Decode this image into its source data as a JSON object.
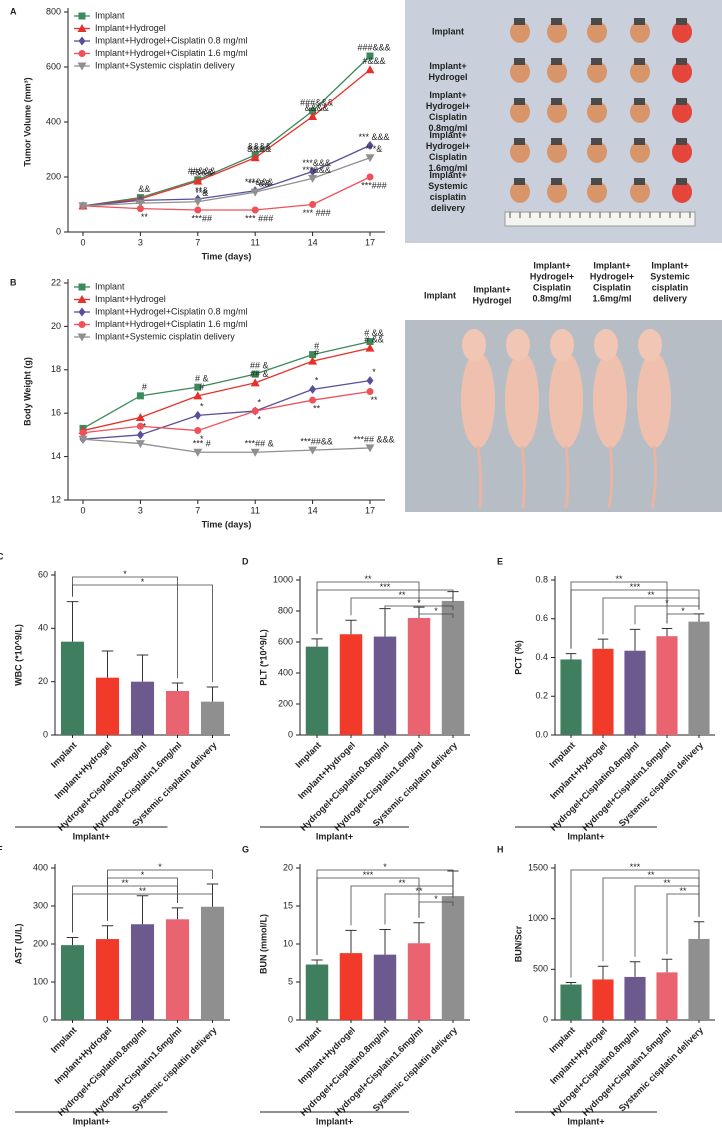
{
  "chart_data": [
    {
      "type": "line",
      "panel": "A",
      "ylabel": "Tumor Volume (mm³)",
      "xlabel": "Time (days)",
      "categories": [
        "0",
        "3",
        "7",
        "11",
        "14",
        "17"
      ],
      "ylim": [
        0,
        800
      ],
      "yticks": [
        0,
        200,
        400,
        600,
        800
      ],
      "series": [
        {
          "name": "Implant",
          "color": "#3a8a5a",
          "values": [
            95,
            125,
            190,
            280,
            440,
            640
          ],
          "annotations": [
            null,
            "&&",
            "##&&&",
            "&&&&",
            "###&&&",
            "###&&&"
          ]
        },
        {
          "name": "Implant+Hydrogel",
          "color": "#e8302a",
          "values": [
            95,
            120,
            185,
            270,
            420,
            590
          ],
          "annotations": [
            null,
            null,
            "#&&&",
            "&&&&",
            "&&&&",
            "#&&&"
          ]
        },
        {
          "name": "Implant+Hydrogel+Cisplatin 0.8 mg/ml",
          "color": "#5a4f9a",
          "values": [
            95,
            115,
            120,
            150,
            220,
            315
          ],
          "annotations": [
            null,
            null,
            "**&",
            "***&&&",
            "***&&&",
            "*** &&&"
          ]
        },
        {
          "name": "Implant+Hydrogel+Cisplatin 1.6 mg/ml",
          "color": "#f0505a",
          "values": [
            95,
            85,
            80,
            80,
            100,
            200
          ],
          "annotations": [
            null,
            "**",
            "***##",
            "*** ###",
            "*** ###",
            "***###"
          ]
        },
        {
          "name": "Implant+Systemic cisplatin delivery",
          "color": "#909090",
          "values": [
            95,
            105,
            110,
            145,
            195,
            270
          ],
          "annotations": [
            null,
            null,
            "**&",
            "***&&",
            "***&&&",
            "***&"
          ]
        }
      ]
    },
    {
      "type": "line",
      "panel": "B",
      "ylabel": "Body Weight (g)",
      "xlabel": "Time (days)",
      "categories": [
        "0",
        "3",
        "7",
        "11",
        "14",
        "17"
      ],
      "ylim": [
        12,
        22
      ],
      "yticks": [
        12,
        14,
        16,
        18,
        20,
        22
      ],
      "series": [
        {
          "name": "Implant",
          "color": "#3a8a5a",
          "values": [
            15.3,
            16.8,
            17.2,
            17.8,
            18.7,
            19.3
          ],
          "annotations": [
            null,
            "#",
            "# &",
            "## &",
            "#",
            "# &&"
          ]
        },
        {
          "name": "Implant+Hydrogel",
          "color": "#e8302a",
          "values": [
            15.2,
            15.8,
            16.8,
            17.4,
            18.4,
            19.0
          ],
          "annotations": [
            null,
            null,
            "#",
            "## &",
            "#",
            "# &&"
          ]
        },
        {
          "name": "Implant+Hydrogel+Cisplatin 0.8 mg/ml",
          "color": "#5a4f9a",
          "values": [
            14.8,
            15.0,
            15.9,
            16.1,
            17.1,
            17.5
          ],
          "annotations": [
            null,
            "*",
            "*",
            "*",
            "*",
            "*"
          ]
        },
        {
          "name": "Implant+Hydrogel+Cisplatin 1.6 mg/ml",
          "color": "#f0505a",
          "values": [
            15.1,
            15.4,
            15.2,
            16.1,
            16.6,
            17.0
          ],
          "annotations": [
            null,
            null,
            "*",
            "*",
            "**",
            "**"
          ]
        },
        {
          "name": "Implant+Systemic cisplatin delivery",
          "color": "#909090",
          "values": [
            14.8,
            14.6,
            14.2,
            14.2,
            14.3,
            14.4
          ],
          "annotations": [
            null,
            null,
            "*** #",
            "***## &",
            "***##&&",
            "***## &&&"
          ]
        }
      ]
    },
    {
      "type": "bar",
      "panel": "C",
      "ylabel": "WBC (*10^9/L)",
      "group_label": "Implant+",
      "categories": [
        "Implant",
        "Implant+Hydrogel",
        "Hydrogel+Cisplatin0.8mg/ml",
        "Hydrogel+Cisplatin1.6mg/ml",
        "Systemic cisplatin delivery"
      ],
      "colors": [
        "#3f7f5f",
        "#f23a2a",
        "#6c5a8e",
        "#e96470",
        "#8f8f8f"
      ],
      "values": [
        35,
        21.5,
        20,
        16.5,
        12.5
      ],
      "errors": [
        15,
        10,
        10,
        3,
        5.5
      ],
      "ylim": [
        0,
        60
      ],
      "yticks": [
        0,
        20,
        40,
        60
      ],
      "brackets": [
        {
          "from": 0,
          "to": 3,
          "label": "*"
        },
        {
          "from": 0,
          "to": 4,
          "label": "*"
        }
      ]
    },
    {
      "type": "bar",
      "panel": "D",
      "ylabel": "PLT (*10^9/L)",
      "group_label": "Implant+",
      "categories": [
        "Implant",
        "Implant+Hydrogel",
        "Hydrogel+Cisplatin0.8mg/ml",
        "Hydrogel+Cisplatin1.6mg/ml",
        "Systemic cisplatin delivery"
      ],
      "colors": [
        "#3f7f5f",
        "#f23a2a",
        "#6c5a8e",
        "#e96470",
        "#8f8f8f"
      ],
      "values": [
        570,
        650,
        635,
        755,
        865
      ],
      "errors": [
        50,
        90,
        180,
        70,
        60
      ],
      "ylim": [
        0,
        1000
      ],
      "yticks": [
        0,
        200,
        400,
        600,
        800,
        1000
      ],
      "brackets": [
        {
          "from": 0,
          "to": 3,
          "label": "**"
        },
        {
          "from": 0,
          "to": 4,
          "label": "***"
        },
        {
          "from": 1,
          "to": 4,
          "label": "**"
        },
        {
          "from": 2,
          "to": 4,
          "label": "*"
        },
        {
          "from": 3,
          "to": 4,
          "label": "*"
        }
      ]
    },
    {
      "type": "bar",
      "panel": "E",
      "ylabel": "PCT (%)",
      "group_label": "Implant+",
      "categories": [
        "Implant",
        "Implant+Hydrogel",
        "Hydrogel+Cisplatin0.8mg/ml",
        "Hydrogel+Cisplatin1.6mg/ml",
        "Systemic cisplatin delivery"
      ],
      "colors": [
        "#3f7f5f",
        "#f23a2a",
        "#6c5a8e",
        "#e96470",
        "#8f8f8f"
      ],
      "values": [
        0.39,
        0.445,
        0.435,
        0.51,
        0.585
      ],
      "errors": [
        0.03,
        0.05,
        0.11,
        0.04,
        0.04
      ],
      "ylim": [
        0,
        0.8
      ],
      "yticks": [
        {
          "value": 0,
          "label": "0.0"
        },
        0.2,
        0.4,
        0.6,
        0.8
      ],
      "brackets": [
        {
          "from": 0,
          "to": 3,
          "label": "**"
        },
        {
          "from": 0,
          "to": 4,
          "label": "***"
        },
        {
          "from": 1,
          "to": 4,
          "label": "**"
        },
        {
          "from": 2,
          "to": 4,
          "label": "*"
        },
        {
          "from": 3,
          "to": 4,
          "label": "*"
        }
      ]
    },
    {
      "type": "bar",
      "panel": "F",
      "ylabel": "AST (U/L)",
      "group_label": "Implant+",
      "categories": [
        "Implant",
        "Implant+Hydrogel",
        "Hydrogel+Cisplatin0.8mg/ml",
        "Hydrogel+Cisplatin1.6mg/ml",
        "Systemic cisplatin delivery"
      ],
      "colors": [
        "#3f7f5f",
        "#f23a2a",
        "#6c5a8e",
        "#e96470",
        "#8f8f8f"
      ],
      "values": [
        197,
        213,
        252,
        265,
        298
      ],
      "errors": [
        20,
        35,
        75,
        30,
        60
      ],
      "ylim": [
        0,
        400
      ],
      "yticks": [
        0,
        100,
        200,
        300,
        400
      ],
      "brackets": [
        {
          "from": 1,
          "to": 4,
          "label": "*"
        },
        {
          "from": 1,
          "to": 3,
          "label": "*"
        },
        {
          "from": 0,
          "to": 3,
          "label": "**"
        },
        {
          "from": 0,
          "to": 4,
          "label": "**"
        }
      ]
    },
    {
      "type": "bar",
      "panel": "G",
      "ylabel": "BUN (mmol/L)",
      "group_label": "Implant+",
      "categories": [
        "Implant",
        "Implant+Hydrogel",
        "Hydrogel+Cisplatin0.8mg/ml",
        "Hydrogel+Cisplatin1.6mg/ml",
        "Systemic cisplatin delivery"
      ],
      "colors": [
        "#3f7f5f",
        "#f23a2a",
        "#6c5a8e",
        "#e96470",
        "#8f8f8f"
      ],
      "values": [
        7.3,
        8.8,
        8.6,
        10.1,
        16.3
      ],
      "errors": [
        0.6,
        3,
        3.3,
        2.7,
        3.3
      ],
      "ylim": [
        0,
        20
      ],
      "yticks": [
        0,
        5,
        10,
        15,
        20
      ],
      "brackets": [
        {
          "from": 0,
          "to": 4,
          "label": "*"
        },
        {
          "from": 0,
          "to": 3,
          "label": "***"
        },
        {
          "from": 1,
          "to": 4,
          "label": "**"
        },
        {
          "from": 2,
          "to": 4,
          "label": "**"
        },
        {
          "from": 3,
          "to": 4,
          "label": "*"
        }
      ]
    },
    {
      "type": "bar",
      "panel": "H",
      "ylabel": "BUN/Scr",
      "group_label": "Implant+",
      "categories": [
        "Implant",
        "Implant+Hydrogel",
        "Hydrogel+Cisplatin0.8mg/ml",
        "Hydrogel+Cisplatin1.6mg/ml",
        "Systemic cisplatin delivery"
      ],
      "colors": [
        "#3f7f5f",
        "#f23a2a",
        "#6c5a8e",
        "#e96470",
        "#8f8f8f"
      ],
      "values": [
        350,
        400,
        425,
        470,
        800
      ],
      "errors": [
        20,
        130,
        150,
        130,
        170
      ],
      "ylim": [
        0,
        1500
      ],
      "yticks": [
        0,
        500,
        1000,
        1500
      ],
      "brackets": [
        {
          "from": 0,
          "to": 4,
          "label": "***"
        },
        {
          "from": 1,
          "to": 4,
          "label": "**"
        },
        {
          "from": 2,
          "to": 4,
          "label": "**"
        },
        {
          "from": 3,
          "to": 4,
          "label": "**"
        }
      ]
    }
  ],
  "photos": {
    "tumors": {
      "labels": [
        [
          "Implant"
        ],
        [
          "Implant+",
          "Hydrogel"
        ],
        [
          "Implant+",
          "Hydrogel+",
          "Cisplatin",
          "0.8mg/ml"
        ],
        [
          "Implant+",
          "Hydrogel+",
          "Cisplatin",
          "1.6mg/ml"
        ],
        [
          "Implant+",
          "Systemic",
          "cisplatin",
          "delivery"
        ]
      ]
    },
    "mice": {
      "labels": [
        [
          "Implant"
        ],
        [
          "Implant+",
          "Hydrogel"
        ],
        [
          "Implant+",
          "Hydrogel+",
          "Cisplatin",
          "0.8mg/ml"
        ],
        [
          "Implant+",
          "Hydrogel+",
          "Cisplatin",
          "1.6mg/ml"
        ],
        [
          "Implant+",
          "Systemic",
          "cisplatin",
          "delivery"
        ]
      ]
    }
  }
}
